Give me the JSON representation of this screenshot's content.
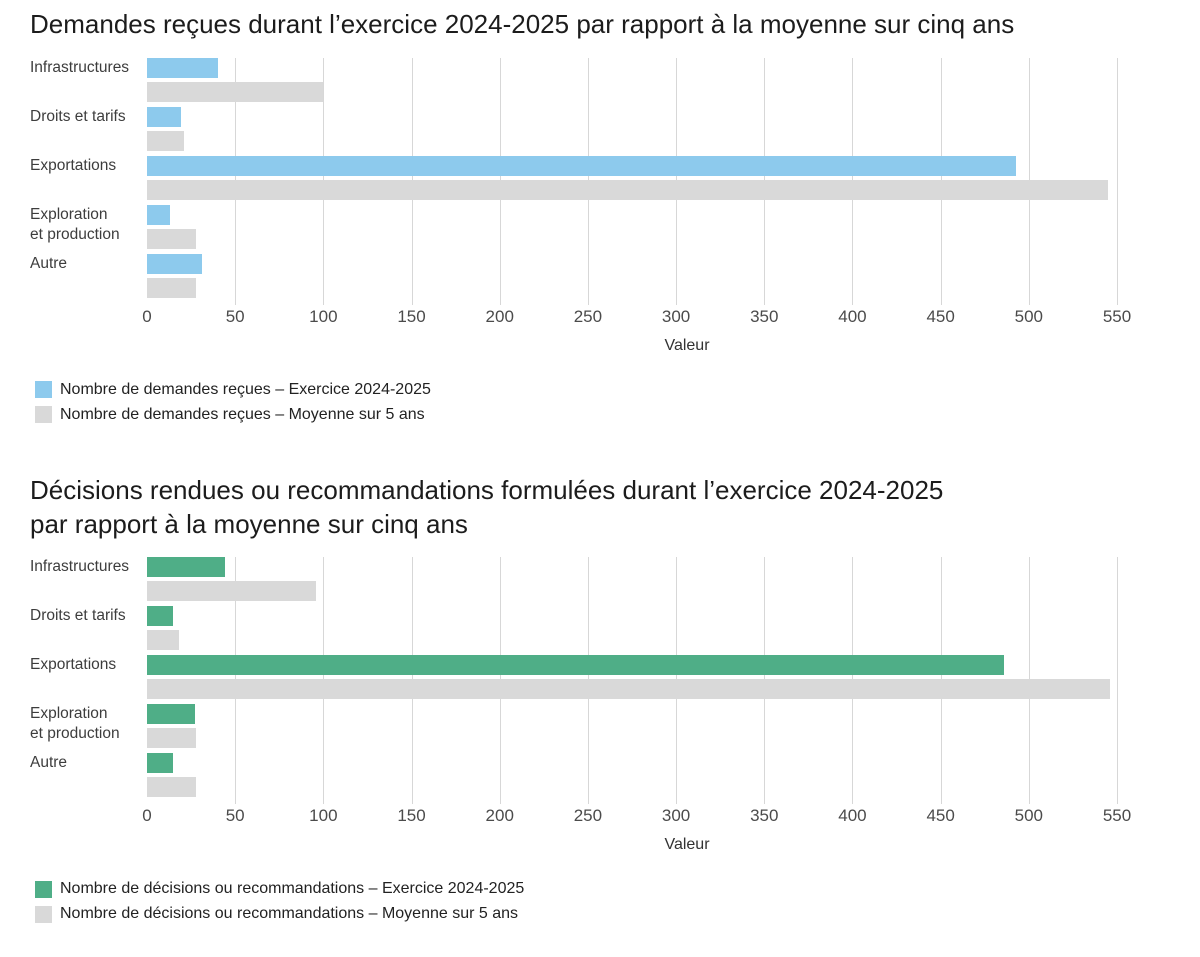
{
  "page": {
    "background": "#ffffff",
    "axis_label": "Valeur"
  },
  "chart_data": [
    {
      "type": "bar",
      "orientation": "horizontal",
      "title": "Demandes reçues durant l’exercice 2024-2025 par rapport à la moyenne sur cinq ans",
      "categories": [
        "Infrastructures",
        "Droits et tarifs",
        "Exportations",
        "Exploration\net production",
        "Autre"
      ],
      "series": [
        {
          "name": "Nombre de demandes reçues – Exercice 2024-2025",
          "color": "#8dcaed",
          "values": [
            40,
            19,
            493,
            13,
            31
          ]
        },
        {
          "name": "Nombre de demandes reçues – Moyenne sur 5 ans",
          "color": "#d9d9d9",
          "values": [
            100,
            21,
            545,
            28,
            28
          ]
        }
      ],
      "xlabel": "Valeur",
      "xlim": [
        0,
        550
      ],
      "xticks": [
        0,
        50,
        100,
        150,
        200,
        250,
        300,
        350,
        400,
        450,
        500,
        550
      ],
      "grid": true,
      "legend_position": "bottom"
    },
    {
      "type": "bar",
      "orientation": "horizontal",
      "title": "Décisions rendues ou recommandations formulées durant l’exercice 2024-2025\npar rapport à la moyenne sur cinq ans",
      "categories": [
        "Infrastructures",
        "Droits et tarifs",
        "Exportations",
        "Exploration\net production",
        "Autre"
      ],
      "series": [
        {
          "name": "Nombre de décisions ou recommandations – Exercice 2024-2025",
          "color": "#4fae87",
          "values": [
            44,
            15,
            486,
            27,
            15
          ]
        },
        {
          "name": "Nombre de décisions ou recommandations – Moyenne sur 5 ans",
          "color": "#d9d9d9",
          "values": [
            96,
            18,
            546,
            28,
            28
          ]
        }
      ],
      "xlabel": "Valeur",
      "xlim": [
        0,
        550
      ],
      "xticks": [
        0,
        50,
        100,
        150,
        200,
        250,
        300,
        350,
        400,
        450,
        500,
        550
      ],
      "grid": true,
      "legend_position": "bottom"
    }
  ]
}
